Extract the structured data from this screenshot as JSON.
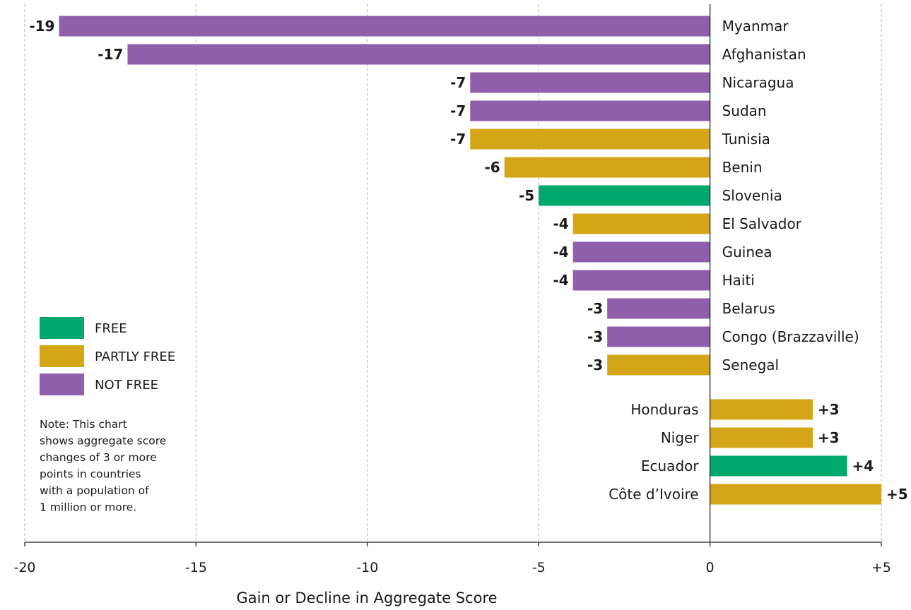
{
  "colors": {
    "FREE": "#00a86b",
    "PARTLY FREE": "#d4a617",
    "NOT FREE": "#8f5fab"
  },
  "chart_data": {
    "type": "bar",
    "orientation": "horizontal",
    "xlabel": "Gain or Decline in Aggregate Score",
    "xlim": [
      -20,
      5
    ],
    "xticks": [
      {
        "value": -20,
        "label": "-20"
      },
      {
        "value": -15,
        "label": "-15"
      },
      {
        "value": -10,
        "label": "-10"
      },
      {
        "value": -5,
        "label": "-5"
      },
      {
        "value": 0,
        "label": "0"
      },
      {
        "value": 5,
        "label": "+5"
      }
    ],
    "grid": true,
    "categories": [
      "Myanmar",
      "Afghanistan",
      "Nicaragua",
      "Sudan",
      "Tunisia",
      "Benin",
      "Slovenia",
      "El Salvador",
      "Guinea",
      "Haiti",
      "Belarus",
      "Congo (Brazzaville)",
      "Senegal",
      "Honduras",
      "Niger",
      "Ecuador",
      "Côte d’Ivoire"
    ],
    "values": [
      -19,
      -17,
      -7,
      -7,
      -7,
      -6,
      -5,
      -4,
      -4,
      -4,
      -3,
      -3,
      -3,
      3,
      3,
      4,
      5
    ],
    "value_labels": [
      "-19",
      "-17",
      "-7",
      "-7",
      "-7",
      "-6",
      "-5",
      "-4",
      "-4",
      "-4",
      "-3",
      "-3",
      "-3",
      "+3",
      "+3",
      "+4",
      "+5"
    ],
    "status": [
      "NOT FREE",
      "NOT FREE",
      "NOT FREE",
      "NOT FREE",
      "PARTLY FREE",
      "PARTLY FREE",
      "FREE",
      "PARTLY FREE",
      "NOT FREE",
      "NOT FREE",
      "NOT FREE",
      "NOT FREE",
      "PARTLY FREE",
      "PARTLY FREE",
      "PARTLY FREE",
      "FREE",
      "PARTLY FREE"
    ],
    "legend": {
      "placement": "left",
      "entries": [
        "FREE",
        "PARTLY FREE",
        "NOT FREE"
      ]
    },
    "note": [
      "Note: This chart",
      "shows aggregate score",
      "changes of 3 or more",
      "points in countries",
      "with a population of",
      "1 million or more."
    ]
  }
}
